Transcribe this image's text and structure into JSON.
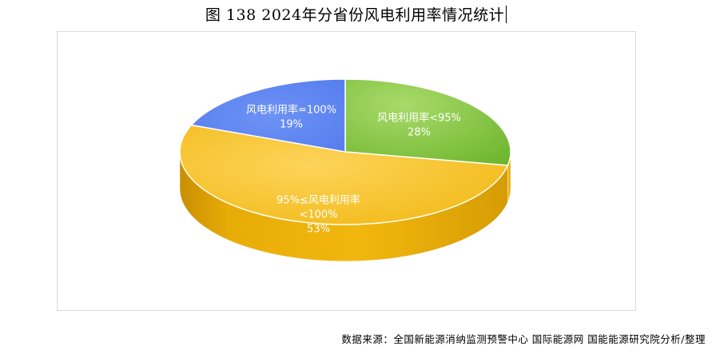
{
  "title": "图 138 2024年分省份风电利用率情况统计",
  "source": "数据来源：全国新能源消纳监测预警中心 国际能源网 国能能源研究院分析/整理",
  "chart_data": {
    "type": "pie",
    "title": "图 138 2024年分省份风电利用率情况统计",
    "slices": [
      {
        "label": "风电利用率<95%",
        "value": 28,
        "value_label": "28%",
        "color": "#8dc63f"
      },
      {
        "label": "95%≤风电利用率<100%",
        "label_lines": [
          "95%≤风电利用率",
          "<100%"
        ],
        "value": 53,
        "value_label": "53%",
        "color": "#f5bd10"
      },
      {
        "label": "风电利用率=100%",
        "value": 19,
        "value_label": "19%",
        "color": "#5b82f0"
      }
    ]
  }
}
